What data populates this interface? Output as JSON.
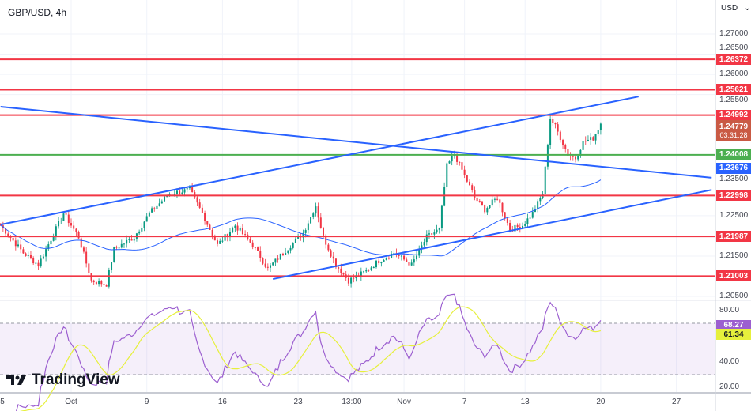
{
  "header": {
    "title": "GBP/USD, 4h",
    "currency": "USD"
  },
  "branding": {
    "logo_text": "TradingView"
  },
  "price_axis": {
    "ticks": [
      "1.27000",
      "1.26500",
      "1.26000",
      "1.25500",
      "1.23500",
      "1.22500",
      "1.21500",
      "1.20500"
    ],
    "tick_values": [
      1.27,
      1.265,
      1.26,
      1.255,
      1.235,
      1.225,
      1.215,
      1.205
    ]
  },
  "levels": [
    {
      "label": "1.26372",
      "value": 1.26372,
      "color": "#f23645"
    },
    {
      "label": "1.25621",
      "value": 1.25621,
      "color": "#f23645"
    },
    {
      "label": "1.24992",
      "value": 1.24992,
      "color": "#f23645"
    },
    {
      "label": "1.24008",
      "value": 1.24008,
      "color": "#4caf50"
    },
    {
      "label": "1.22998",
      "value": 1.22998,
      "color": "#f23645"
    },
    {
      "label": "1.21987",
      "value": 1.21987,
      "color": "#f23645"
    },
    {
      "label": "1.21003",
      "value": 1.21003,
      "color": "#f23645"
    }
  ],
  "current_price": {
    "label": "1.24779",
    "value": 1.24779,
    "countdown": "03:31:28",
    "color": "#c95a44"
  },
  "ma_label": {
    "label": "1.23676",
    "value": 1.23676,
    "color": "#2962ff"
  },
  "rsi": {
    "ticks": [
      "80.00",
      "40.00",
      "20.00"
    ],
    "tick_values": [
      80,
      40,
      20
    ],
    "band": [
      30,
      70
    ],
    "rsi_label": "68.27",
    "rsi_value": 68.27,
    "rsi_color": "#9c5fd0",
    "ma_label": "61.34",
    "ma_value": 61.34,
    "ma_color": "#e6f03c"
  },
  "time_axis": {
    "labels": [
      {
        "text": "5",
        "date": "2023-09-25 00:00"
      },
      {
        "text": "Oct",
        "date": "2023-10-02 00:00"
      },
      {
        "text": "9",
        "date": "2023-10-09 00:00"
      },
      {
        "text": "16",
        "date": "2023-10-16 00:00"
      },
      {
        "text": "23",
        "date": "2023-10-23 00:00"
      },
      {
        "text": "13:00",
        "date": "2023-10-26 13:00"
      },
      {
        "text": "Nov",
        "date": "2023-11-01 00:00"
      },
      {
        "text": "7",
        "date": "2023-11-07 00:00"
      },
      {
        "text": "13",
        "date": "2023-11-13 00:00"
      },
      {
        "text": "20",
        "date": "2023-11-20 00:00"
      },
      {
        "text": "27",
        "date": "2023-11-27 00:00"
      }
    ]
  },
  "chart_data": {
    "type": "candlestick",
    "symbol": "GBP/USD",
    "interval": "4h",
    "ylim": [
      1.2,
      1.275
    ],
    "up_color": "#089981",
    "down_color": "#f23645",
    "close_path": [
      [
        "2023-09-25 08:00",
        1.2226
      ],
      [
        "2023-09-26 20:00",
        1.2158
      ],
      [
        "2023-09-27 20:00",
        1.2128
      ],
      [
        "2023-09-29 12:00",
        1.2256
      ],
      [
        "2023-10-02 12:00",
        1.2197
      ],
      [
        "2023-10-03 08:00",
        1.2089
      ],
      [
        "2023-10-04 08:00",
        1.208
      ],
      [
        "2023-10-04 20:00",
        1.2167
      ],
      [
        "2023-10-06 04:00",
        1.2197
      ],
      [
        "2023-10-09 04:00",
        1.2256
      ],
      [
        "2023-10-10 12:00",
        1.2305
      ],
      [
        "2023-10-11 20:00",
        1.2314
      ],
      [
        "2023-10-12 16:00",
        1.2256
      ],
      [
        "2023-10-13 16:00",
        1.2177
      ],
      [
        "2023-10-16 20:00",
        1.2226
      ],
      [
        "2023-10-18 00:00",
        1.2177
      ],
      [
        "2023-10-19 00:00",
        1.2118
      ],
      [
        "2023-10-20 00:00",
        1.2158
      ],
      [
        "2023-10-23 08:00",
        1.2207
      ],
      [
        "2023-10-24 04:00",
        1.2275
      ],
      [
        "2023-10-24 16:00",
        1.2197
      ],
      [
        "2023-10-25 12:00",
        1.2128
      ],
      [
        "2023-10-26 08:00",
        1.2089
      ],
      [
        "2023-10-27 08:00",
        1.2109
      ],
      [
        "2023-10-30 08:00",
        1.2138
      ],
      [
        "2023-10-31 08:00",
        1.2158
      ],
      [
        "2023-11-01 12:00",
        1.2128
      ],
      [
        "2023-11-02 12:00",
        1.2197
      ],
      [
        "2023-11-03 08:00",
        1.2216
      ],
      [
        "2023-11-03 20:00",
        1.2373
      ],
      [
        "2023-11-06 08:00",
        1.2402
      ],
      [
        "2023-11-06 20:00",
        1.2363
      ],
      [
        "2023-11-07 16:00",
        1.2295
      ],
      [
        "2023-11-08 08:00",
        1.2265
      ],
      [
        "2023-11-09 04:00",
        1.2295
      ],
      [
        "2023-11-10 00:00",
        1.2216
      ],
      [
        "2023-11-10 20:00",
        1.2226
      ],
      [
        "2023-11-13 12:00",
        1.2256
      ],
      [
        "2023-11-14 04:00",
        1.2305
      ],
      [
        "2023-11-14 16:00",
        1.2491
      ],
      [
        "2023-11-15 00:00",
        1.2471
      ],
      [
        "2023-11-15 20:00",
        1.2402
      ],
      [
        "2023-11-16 08:00",
        1.2392
      ],
      [
        "2023-11-16 20:00",
        1.2432
      ],
      [
        "2023-11-17 12:00",
        1.2442
      ],
      [
        "2023-11-20 00:00",
        1.2478
      ]
    ],
    "trend_lines": [
      {
        "name": "ascending-channel-upper",
        "color": "#2962ff",
        "points": [
          [
            "2023-09-25 08:00",
            1.2228
          ],
          [
            "2023-11-22 12:00",
            1.2545
          ]
        ]
      },
      {
        "name": "descending-trendline",
        "color": "#2962ff",
        "points": [
          [
            "2023-09-25 08:00",
            1.252
          ],
          [
            "2023-11-29 08:00",
            1.2344
          ]
        ]
      },
      {
        "name": "ascending-channel-lower",
        "color": "#2962ff",
        "points": [
          [
            "2023-10-19 08:00",
            1.2093
          ],
          [
            "2023-11-29 08:00",
            1.2314
          ]
        ]
      }
    ],
    "moving_average": {
      "color": "#2962ff"
    }
  }
}
